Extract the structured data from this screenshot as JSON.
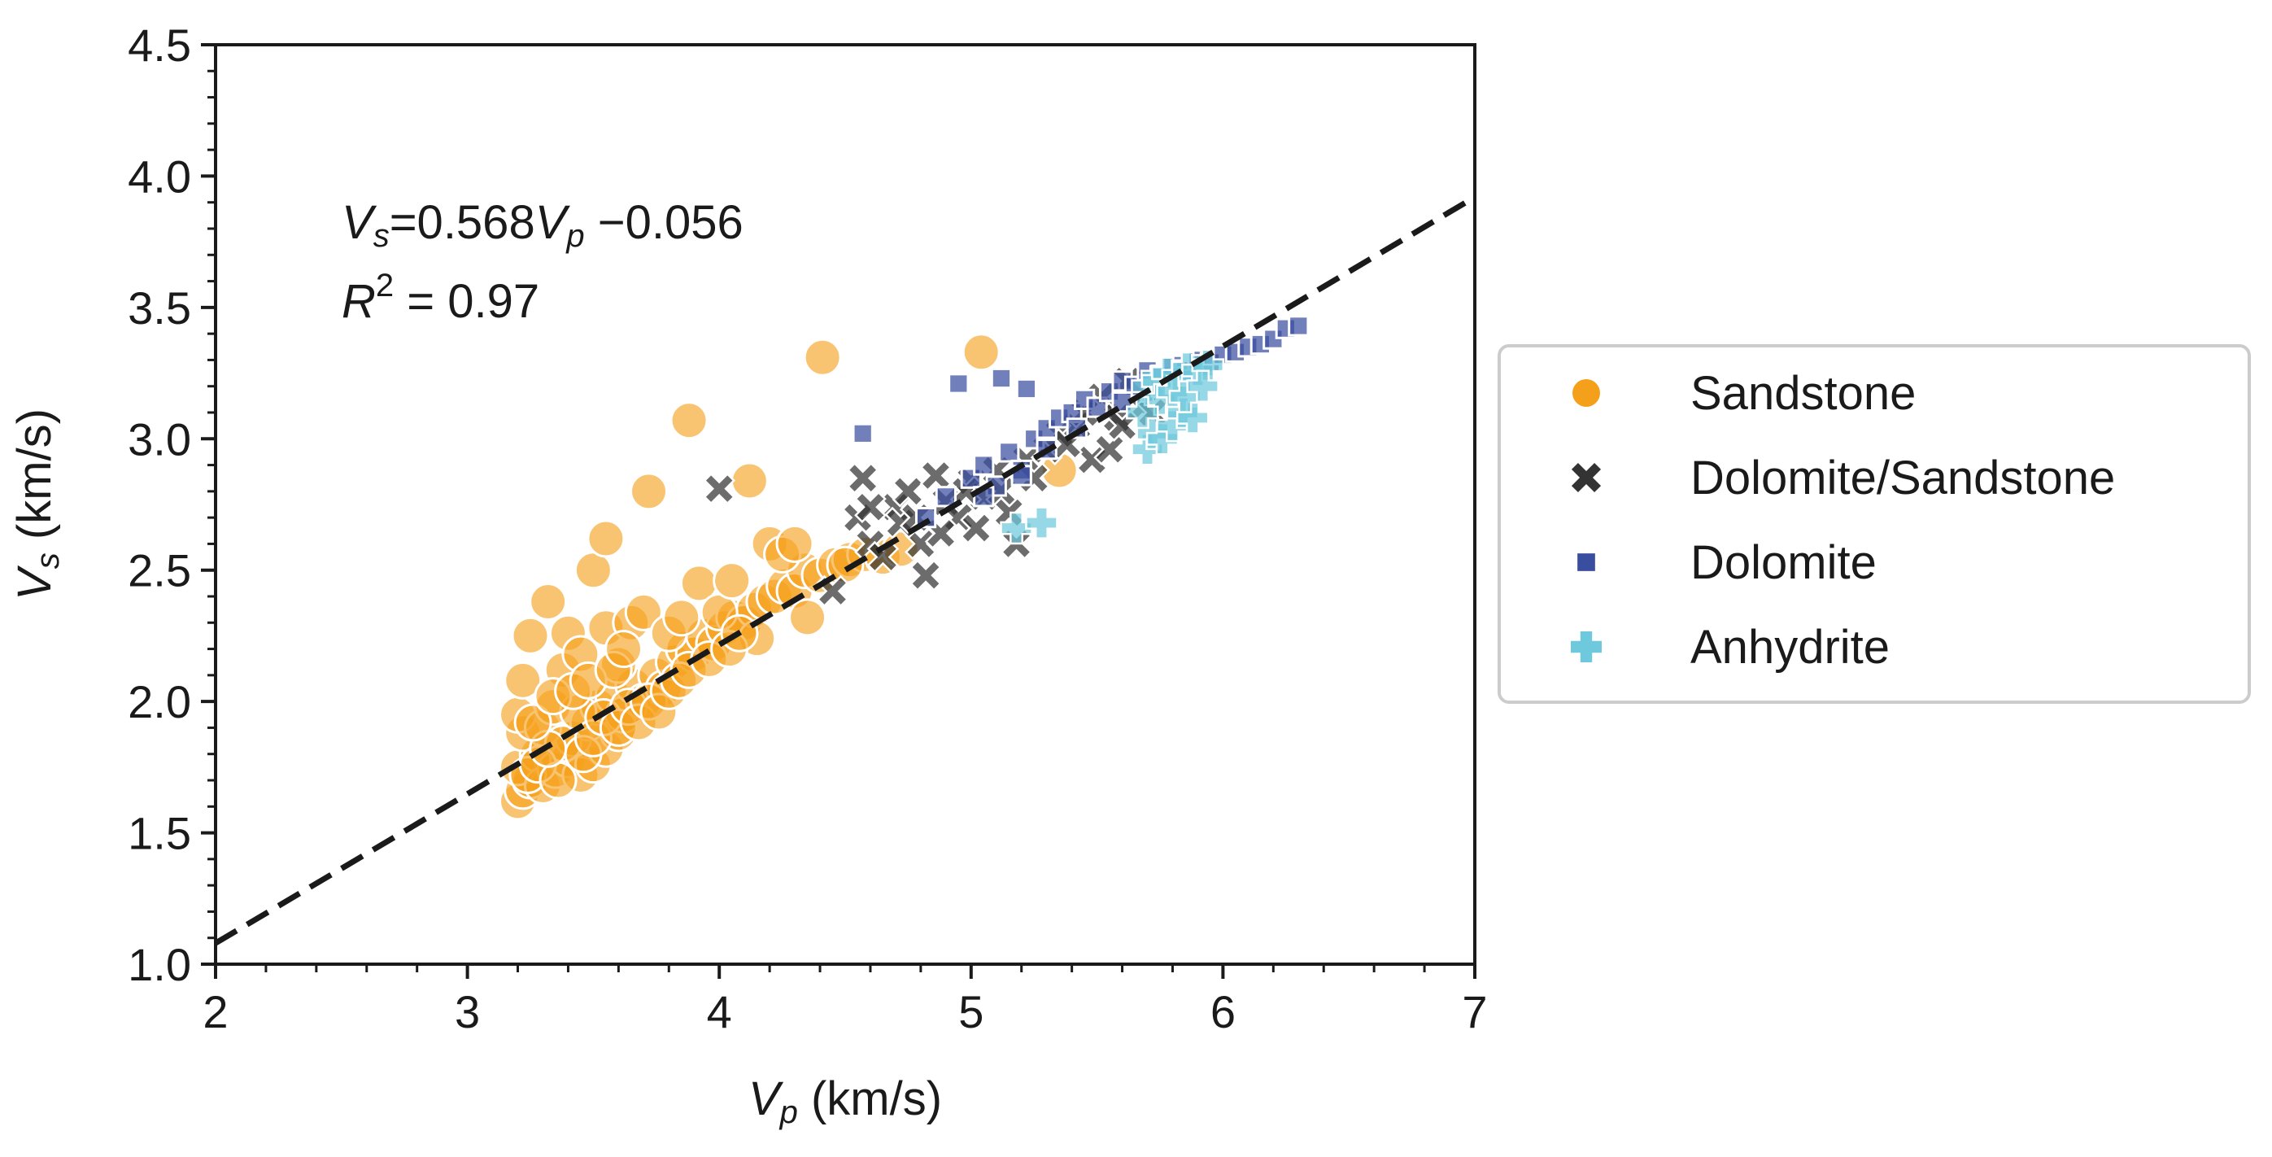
{
  "chart_data": {
    "type": "scatter",
    "title": "",
    "xlabel": {
      "var": "V",
      "sub": "p",
      "unit": " (km/s)"
    },
    "ylabel": {
      "var": "V",
      "sub": "s",
      "unit": " (km/s)"
    },
    "xlim": [
      2,
      7
    ],
    "ylim": [
      1.0,
      4.5
    ],
    "x_ticks": [
      "2",
      "3",
      "4",
      "5",
      "6",
      "7"
    ],
    "y_ticks": [
      "1.0",
      "1.5",
      "2.0",
      "2.5",
      "3.0",
      "3.5",
      "4.0",
      "4.5"
    ],
    "grid": false,
    "legend_placement": "outside-right",
    "annotations": {
      "equation": {
        "lhs_var": "V",
        "lhs_sub": "s",
        "mid": "=0.568",
        "rhs_var": "V",
        "rhs_sub": "p",
        "tail": " −0.056"
      },
      "r2": {
        "var": "R",
        "sup": "2",
        "tail": " = 0.97"
      }
    },
    "fit_line": {
      "slope": 0.568,
      "intercept": -0.056,
      "x_range": [
        2,
        7
      ],
      "color": "#1a1a1a",
      "style": "dashed"
    },
    "series": [
      {
        "name": "Sandstone",
        "marker": "circle",
        "color": "#f5a01a",
        "points": [
          [
            3.2,
            1.62
          ],
          [
            3.22,
            1.66
          ],
          [
            3.25,
            1.7
          ],
          [
            3.2,
            1.75
          ],
          [
            3.28,
            1.8
          ],
          [
            3.22,
            1.88
          ],
          [
            3.3,
            1.68
          ],
          [
            3.35,
            1.74
          ],
          [
            3.4,
            1.78
          ],
          [
            3.45,
            1.72
          ],
          [
            3.5,
            1.76
          ],
          [
            3.55,
            1.82
          ],
          [
            3.6,
            1.88
          ],
          [
            3.42,
            1.86
          ],
          [
            3.48,
            1.92
          ],
          [
            3.52,
            1.98
          ],
          [
            3.58,
            2.02
          ],
          [
            3.62,
            1.95
          ],
          [
            3.66,
            2.06
          ],
          [
            3.7,
            2.0
          ],
          [
            3.75,
            2.1
          ],
          [
            3.78,
            2.05
          ],
          [
            3.82,
            2.15
          ],
          [
            3.86,
            2.2
          ],
          [
            3.9,
            2.18
          ],
          [
            3.94,
            2.25
          ],
          [
            3.98,
            2.22
          ],
          [
            4.02,
            2.28
          ],
          [
            4.06,
            2.32
          ],
          [
            4.1,
            2.3
          ],
          [
            4.14,
            2.35
          ],
          [
            4.18,
            2.38
          ],
          [
            4.22,
            2.4
          ],
          [
            4.26,
            2.44
          ],
          [
            4.3,
            2.42
          ],
          [
            4.34,
            2.5
          ],
          [
            4.4,
            2.48
          ],
          [
            4.46,
            2.52
          ],
          [
            4.52,
            2.54
          ],
          [
            4.58,
            2.56
          ],
          [
            4.65,
            2.55
          ],
          [
            4.72,
            2.58
          ],
          [
            3.2,
            1.95
          ],
          [
            3.22,
            2.08
          ],
          [
            3.25,
            2.25
          ],
          [
            3.32,
            2.38
          ],
          [
            3.4,
            2.26
          ],
          [
            3.38,
            2.12
          ],
          [
            3.45,
            2.18
          ],
          [
            3.5,
            2.5
          ],
          [
            3.55,
            2.62
          ],
          [
            3.55,
            2.28
          ],
          [
            3.6,
            2.14
          ],
          [
            3.65,
            2.3
          ],
          [
            3.7,
            2.34
          ],
          [
            3.72,
            2.8
          ],
          [
            3.8,
            2.26
          ],
          [
            3.85,
            2.32
          ],
          [
            3.88,
            3.07
          ],
          [
            3.92,
            2.45
          ],
          [
            4.0,
            2.34
          ],
          [
            4.05,
            2.46
          ],
          [
            4.12,
            2.84
          ],
          [
            4.15,
            2.24
          ],
          [
            4.2,
            2.6
          ],
          [
            4.25,
            2.56
          ],
          [
            4.3,
            2.6
          ],
          [
            4.35,
            2.32
          ],
          [
            4.41,
            3.31
          ],
          [
            4.5,
            2.52
          ],
          [
            5.04,
            3.33
          ],
          [
            5.35,
            2.88
          ],
          [
            3.3,
            1.9
          ],
          [
            3.34,
            1.98
          ],
          [
            3.38,
            1.84
          ],
          [
            3.44,
            1.96
          ],
          [
            3.46,
            1.8
          ],
          [
            3.5,
            1.86
          ],
          [
            3.54,
            1.94
          ],
          [
            3.6,
            1.9
          ],
          [
            3.64,
            1.98
          ],
          [
            3.68,
            1.92
          ],
          [
            3.72,
            2.0
          ],
          [
            3.76,
            1.96
          ],
          [
            3.8,
            2.04
          ],
          [
            3.84,
            2.08
          ],
          [
            3.88,
            2.12
          ],
          [
            3.96,
            2.16
          ],
          [
            4.04,
            2.2
          ],
          [
            4.08,
            2.26
          ],
          [
            3.24,
            1.72
          ],
          [
            3.28,
            1.76
          ],
          [
            3.36,
            1.7
          ],
          [
            3.32,
            1.82
          ],
          [
            3.26,
            1.92
          ],
          [
            3.34,
            2.02
          ],
          [
            3.42,
            2.04
          ],
          [
            3.48,
            2.08
          ],
          [
            3.58,
            2.12
          ],
          [
            3.62,
            2.2
          ]
        ]
      },
      {
        "name": "Dolomite/Sandstone",
        "marker": "x",
        "color": "#333333",
        "points": [
          [
            4.0,
            2.81
          ],
          [
            4.45,
            2.42
          ],
          [
            4.55,
            2.7
          ],
          [
            4.57,
            2.85
          ],
          [
            4.6,
            2.6
          ],
          [
            4.65,
            2.55
          ],
          [
            4.7,
            2.74
          ],
          [
            4.75,
            2.8
          ],
          [
            4.8,
            2.6
          ],
          [
            4.82,
            2.48
          ],
          [
            4.86,
            2.86
          ],
          [
            4.9,
            2.76
          ],
          [
            4.95,
            2.7
          ],
          [
            5.0,
            2.84
          ],
          [
            5.05,
            2.78
          ],
          [
            5.1,
            2.88
          ],
          [
            5.15,
            2.72
          ],
          [
            5.18,
            2.6
          ],
          [
            5.22,
            2.92
          ],
          [
            5.3,
            2.96
          ],
          [
            5.35,
            3.02
          ],
          [
            5.42,
            3.05
          ],
          [
            5.48,
            2.92
          ],
          [
            5.52,
            3.16
          ],
          [
            5.58,
            3.08
          ],
          [
            5.62,
            3.22
          ],
          [
            5.68,
            3.12
          ],
          [
            5.72,
            3.1
          ],
          [
            5.55,
            2.96
          ],
          [
            5.25,
            2.85
          ],
          [
            4.6,
            2.74
          ],
          [
            4.72,
            2.68
          ],
          [
            4.78,
            2.7
          ],
          [
            4.88,
            2.64
          ],
          [
            4.98,
            2.8
          ],
          [
            5.02,
            2.66
          ],
          [
            5.12,
            2.8
          ],
          [
            5.38,
            2.98
          ],
          [
            5.45,
            3.1
          ],
          [
            5.6,
            3.05
          ]
        ]
      },
      {
        "name": "Dolomite",
        "marker": "square",
        "color": "#3a4ea0",
        "points": [
          [
            4.57,
            3.02
          ],
          [
            4.95,
            3.21
          ],
          [
            5.12,
            3.23
          ],
          [
            5.22,
            3.19
          ],
          [
            4.82,
            2.7
          ],
          [
            4.9,
            2.78
          ],
          [
            5.0,
            2.85
          ],
          [
            5.05,
            2.9
          ],
          [
            5.1,
            2.82
          ],
          [
            5.15,
            2.95
          ],
          [
            5.2,
            2.88
          ],
          [
            5.25,
            3.0
          ],
          [
            5.3,
            3.04
          ],
          [
            5.35,
            3.08
          ],
          [
            5.4,
            3.1
          ],
          [
            5.45,
            3.15
          ],
          [
            5.5,
            3.12
          ],
          [
            5.55,
            3.18
          ],
          [
            5.6,
            3.22
          ],
          [
            5.65,
            3.2
          ],
          [
            5.7,
            3.26
          ],
          [
            5.75,
            3.24
          ],
          [
            5.8,
            3.28
          ],
          [
            5.85,
            3.26
          ],
          [
            5.9,
            3.3
          ],
          [
            5.95,
            3.29
          ],
          [
            6.0,
            3.32
          ],
          [
            6.05,
            3.33
          ],
          [
            6.1,
            3.35
          ],
          [
            6.15,
            3.36
          ],
          [
            6.2,
            3.38
          ],
          [
            6.25,
            3.42
          ],
          [
            6.3,
            3.43
          ],
          [
            5.05,
            2.78
          ],
          [
            5.2,
            2.86
          ],
          [
            5.3,
            2.96
          ],
          [
            5.42,
            3.04
          ],
          [
            5.6,
            3.14
          ]
        ]
      },
      {
        "name": "Anhydrite",
        "marker": "plus",
        "color": "#6ec9dc",
        "points": [
          [
            5.18,
            2.66
          ],
          [
            5.28,
            2.68
          ],
          [
            5.7,
            2.96
          ],
          [
            5.72,
            3.02
          ],
          [
            5.76,
            3.0
          ],
          [
            5.8,
            3.05
          ],
          [
            5.84,
            3.1
          ],
          [
            5.88,
            3.08
          ],
          [
            5.7,
            3.2
          ],
          [
            5.74,
            3.22
          ],
          [
            5.78,
            3.25
          ],
          [
            5.82,
            3.24
          ],
          [
            5.86,
            3.27
          ],
          [
            5.9,
            3.26
          ],
          [
            5.94,
            3.28
          ],
          [
            5.75,
            3.15
          ],
          [
            5.8,
            3.18
          ],
          [
            5.85,
            3.16
          ],
          [
            5.92,
            3.2
          ],
          [
            5.68,
            3.1
          ]
        ]
      }
    ]
  }
}
